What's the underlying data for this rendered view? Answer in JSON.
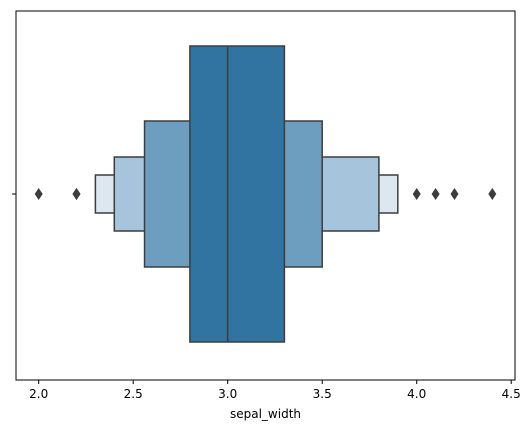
{
  "chart_data": {
    "type": "boxen",
    "orientation": "horizontal",
    "xlabel": "sepal_width",
    "ylabel": "",
    "xlim": [
      1.88,
      4.52
    ],
    "x_ticks": [
      2.0,
      2.5,
      3.0,
      3.5,
      4.0,
      4.5
    ],
    "x_tick_labels": [
      "2.0",
      "2.5",
      "3.0",
      "3.5",
      "4.0",
      "4.5"
    ],
    "y_ticks": [
      ""
    ],
    "grid": false,
    "median": 3.0,
    "boxes": [
      {
        "level": 1,
        "low": 2.8,
        "high": 3.3,
        "color": "#3274a1"
      },
      {
        "level": 2,
        "low": 2.56,
        "high": 3.5,
        "color": "#6e9ebf"
      },
      {
        "level": 3,
        "low": 2.4,
        "high": 3.8,
        "color": "#a6c4db"
      },
      {
        "level": 4,
        "low": 2.3,
        "high": 3.9,
        "color": "#dde7f0"
      }
    ],
    "outliers": [
      2.0,
      2.2,
      2.2,
      4.0,
      4.1,
      4.2,
      4.4
    ],
    "edge_color": "#3d3d3d"
  }
}
